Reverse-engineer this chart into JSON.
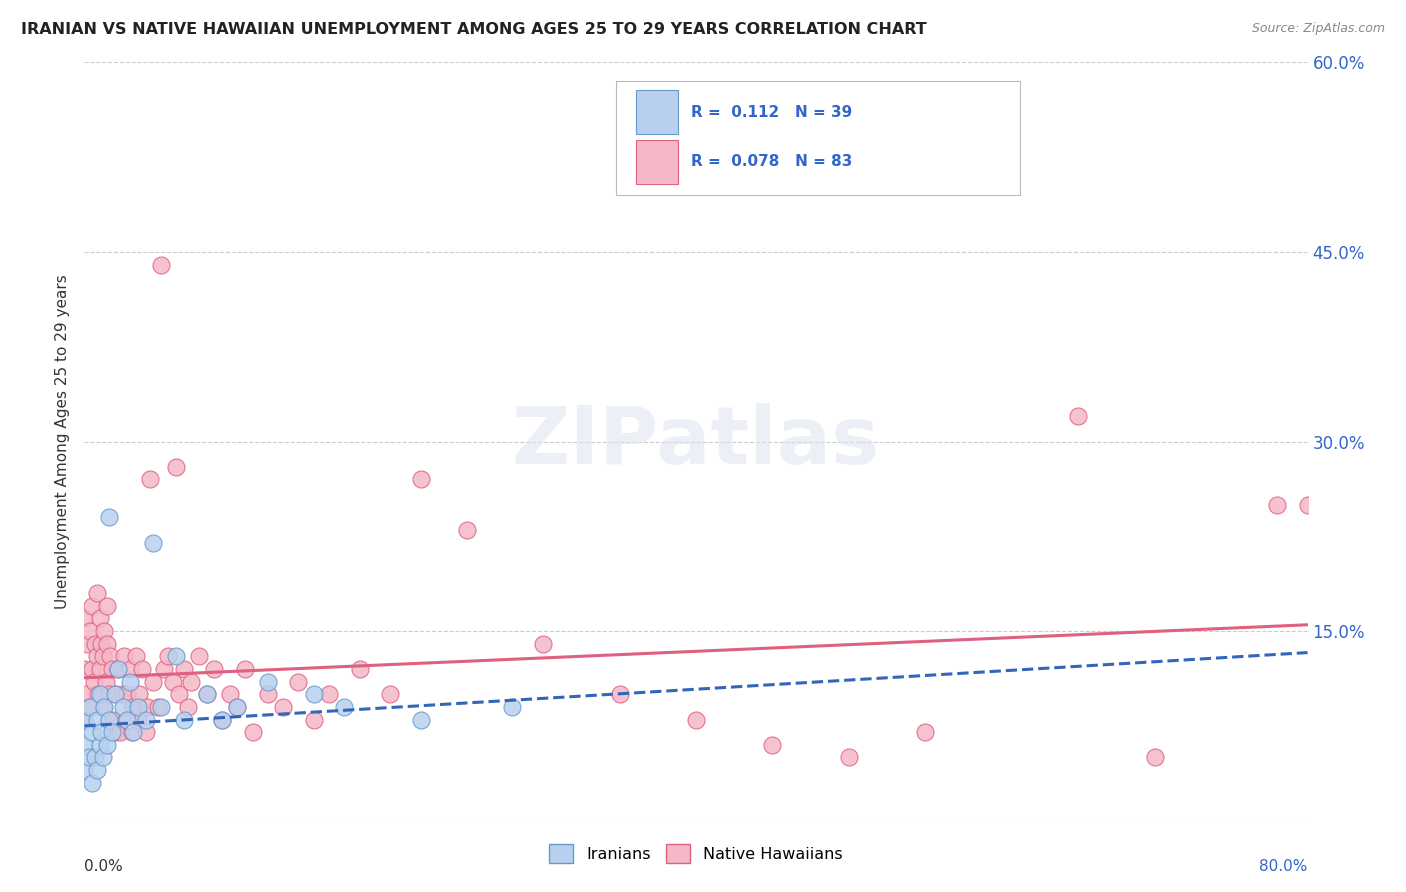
{
  "title": "IRANIAN VS NATIVE HAWAIIAN UNEMPLOYMENT AMONG AGES 25 TO 29 YEARS CORRELATION CHART",
  "source": "Source: ZipAtlas.com",
  "ylabel": "Unemployment Among Ages 25 to 29 years",
  "xlim": [
    0.0,
    0.8
  ],
  "ylim": [
    0.0,
    0.6
  ],
  "yticks": [
    0.0,
    0.15,
    0.3,
    0.45,
    0.6
  ],
  "background_color": "#ffffff",
  "watermark": "ZIPatlas",
  "iranians": {
    "color": "#b8d0ee",
    "edge_color": "#6699cc",
    "trend_color": "#3366bb",
    "trend_style": "--",
    "R": 0.112,
    "N": 39,
    "points_x": [
      0.0,
      0.0,
      0.0,
      0.003,
      0.004,
      0.005,
      0.005,
      0.007,
      0.008,
      0.008,
      0.01,
      0.01,
      0.011,
      0.012,
      0.013,
      0.015,
      0.016,
      0.016,
      0.018,
      0.02,
      0.022,
      0.025,
      0.028,
      0.03,
      0.032,
      0.035,
      0.04,
      0.045,
      0.05,
      0.06,
      0.065,
      0.08,
      0.09,
      0.1,
      0.12,
      0.15,
      0.17,
      0.22,
      0.28
    ],
    "points_y": [
      0.04,
      0.06,
      0.08,
      0.05,
      0.09,
      0.03,
      0.07,
      0.05,
      0.04,
      0.08,
      0.06,
      0.1,
      0.07,
      0.05,
      0.09,
      0.06,
      0.08,
      0.24,
      0.07,
      0.1,
      0.12,
      0.09,
      0.08,
      0.11,
      0.07,
      0.09,
      0.08,
      0.22,
      0.09,
      0.13,
      0.08,
      0.1,
      0.08,
      0.09,
      0.11,
      0.1,
      0.09,
      0.08,
      0.09
    ]
  },
  "native_hawaiians": {
    "color": "#f4b8c8",
    "edge_color": "#e06080",
    "trend_color": "#e06080",
    "trend_style": "-",
    "R": 0.078,
    "N": 83,
    "points_x": [
      0.0,
      0.0,
      0.0,
      0.001,
      0.002,
      0.003,
      0.004,
      0.005,
      0.005,
      0.006,
      0.007,
      0.008,
      0.008,
      0.009,
      0.01,
      0.01,
      0.011,
      0.012,
      0.012,
      0.013,
      0.014,
      0.015,
      0.015,
      0.016,
      0.017,
      0.018,
      0.019,
      0.02,
      0.021,
      0.022,
      0.023,
      0.025,
      0.026,
      0.027,
      0.028,
      0.03,
      0.031,
      0.032,
      0.034,
      0.035,
      0.036,
      0.038,
      0.04,
      0.041,
      0.043,
      0.045,
      0.048,
      0.05,
      0.052,
      0.055,
      0.058,
      0.06,
      0.062,
      0.065,
      0.068,
      0.07,
      0.075,
      0.08,
      0.085,
      0.09,
      0.095,
      0.1,
      0.105,
      0.11,
      0.12,
      0.13,
      0.14,
      0.15,
      0.16,
      0.18,
      0.2,
      0.22,
      0.25,
      0.3,
      0.35,
      0.4,
      0.45,
      0.5,
      0.55,
      0.65,
      0.7,
      0.78,
      0.8
    ],
    "points_y": [
      0.08,
      0.12,
      0.16,
      0.1,
      0.14,
      0.09,
      0.15,
      0.12,
      0.17,
      0.11,
      0.14,
      0.13,
      0.18,
      0.1,
      0.16,
      0.12,
      0.14,
      0.13,
      0.09,
      0.15,
      0.11,
      0.14,
      0.17,
      0.1,
      0.13,
      0.12,
      0.08,
      0.07,
      0.1,
      0.12,
      0.07,
      0.1,
      0.13,
      0.08,
      0.1,
      0.12,
      0.07,
      0.09,
      0.13,
      0.08,
      0.1,
      0.12,
      0.07,
      0.09,
      0.27,
      0.11,
      0.09,
      0.44,
      0.12,
      0.13,
      0.11,
      0.28,
      0.1,
      0.12,
      0.09,
      0.11,
      0.13,
      0.1,
      0.12,
      0.08,
      0.1,
      0.09,
      0.12,
      0.07,
      0.1,
      0.09,
      0.11,
      0.08,
      0.1,
      0.12,
      0.1,
      0.27,
      0.23,
      0.14,
      0.1,
      0.08,
      0.06,
      0.05,
      0.07,
      0.32,
      0.05,
      0.25,
      0.25
    ]
  }
}
